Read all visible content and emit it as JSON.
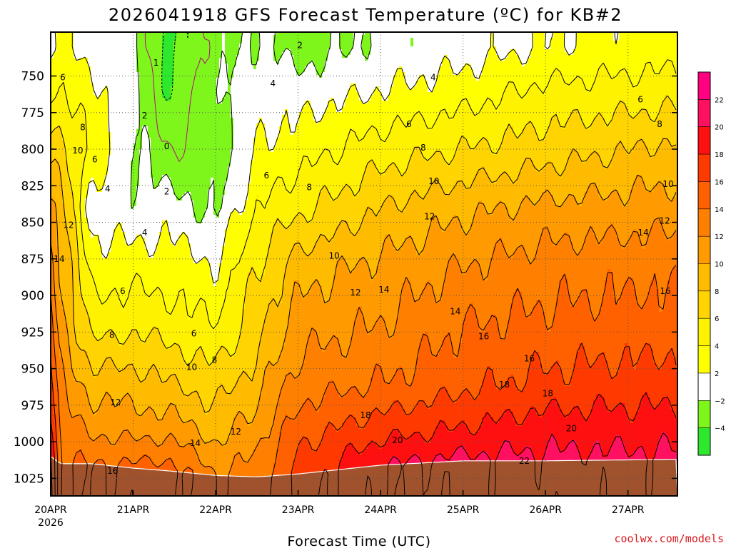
{
  "chart_data": {
    "type": "heatmap",
    "title": "2026041918 GFS Forecast Temperature (ºC) for KB#2",
    "xlabel": "Forecast Time (UTC)",
    "ylabel": "",
    "credit": "coolwx.com/models",
    "y_axis": {
      "reversed": true,
      "range": [
        1037,
        720
      ],
      "ticks": [
        "750",
        "775",
        "800",
        "825",
        "850",
        "875",
        "900",
        "925",
        "950",
        "975",
        "1000",
        "1025"
      ]
    },
    "x_axis": {
      "range": [
        0,
        7.6
      ],
      "ticks": [
        {
          "label": "20APR",
          "sub": "2026",
          "day": 0
        },
        {
          "label": "21APR",
          "sub": "",
          "day": 1
        },
        {
          "label": "22APR",
          "sub": "",
          "day": 2
        },
        {
          "label": "23APR",
          "sub": "",
          "day": 3
        },
        {
          "label": "24APR",
          "sub": "",
          "day": 4
        },
        {
          "label": "25APR",
          "sub": "",
          "day": 5
        },
        {
          "label": "26APR",
          "sub": "",
          "day": 6
        },
        {
          "label": "27APR",
          "sub": "",
          "day": 7
        }
      ]
    },
    "grid": true,
    "colorbar": {
      "levels": [
        -6,
        -4,
        -2,
        2,
        4,
        6,
        8,
        10,
        12,
        14,
        16,
        18,
        20,
        22,
        24
      ],
      "tick_labels": [
        "−4",
        "−2",
        "2",
        "4",
        "6",
        "8",
        "10",
        "12",
        "14",
        "16",
        "18",
        "20",
        "22"
      ],
      "colors": [
        "#00e676",
        "#2ee82e",
        "#7ef51b",
        "#ffffff",
        "#ffff00",
        "#fff200",
        "#ffd400",
        "#ffbb00",
        "#ff9a00",
        "#ff8000",
        "#ff6000",
        "#ff3a00",
        "#ff1010",
        "#ff1060",
        "#ff0080"
      ]
    },
    "ground_color": "#a0522d",
    "profiles": [
      {
        "day": 0.0,
        "surface_p": 1010,
        "levels": [
          [
            730,
            4
          ],
          [
            760,
            6
          ],
          [
            800,
            9
          ],
          [
            840,
            12
          ],
          [
            880,
            15
          ],
          [
            920,
            17
          ],
          [
            960,
            19
          ],
          [
            990,
            21
          ],
          [
            1010,
            22.5
          ]
        ]
      },
      {
        "day": 0.12,
        "surface_p": 1015,
        "levels": [
          [
            730,
            4.5
          ],
          [
            760,
            6
          ],
          [
            800,
            9
          ],
          [
            840,
            11
          ],
          [
            880,
            12
          ],
          [
            920,
            13
          ],
          [
            960,
            14
          ],
          [
            990,
            15
          ],
          [
            1015,
            16
          ]
        ]
      },
      {
        "day": 0.5,
        "surface_p": 1015,
        "levels": [
          [
            730,
            3
          ],
          [
            760,
            4.5
          ],
          [
            800,
            5.5
          ],
          [
            840,
            3
          ],
          [
            880,
            5
          ],
          [
            920,
            7
          ],
          [
            960,
            11
          ],
          [
            990,
            13.5
          ],
          [
            1015,
            16
          ]
        ]
      },
      {
        "day": 1.0,
        "surface_p": 1018,
        "levels": [
          [
            730,
            2.5
          ],
          [
            760,
            3
          ],
          [
            800,
            2.5
          ],
          [
            840,
            2.5
          ],
          [
            880,
            5
          ],
          [
            920,
            7.5
          ],
          [
            960,
            11
          ],
          [
            990,
            13
          ],
          [
            1018,
            16.5
          ]
        ]
      },
      {
        "day": 1.45,
        "surface_p": 1020,
        "levels": [
          [
            730,
            -3
          ],
          [
            760,
            -2.5
          ],
          [
            800,
            0
          ],
          [
            840,
            3
          ],
          [
            880,
            5
          ],
          [
            920,
            7
          ],
          [
            960,
            10
          ],
          [
            990,
            13
          ],
          [
            1020,
            17
          ]
        ]
      },
      {
        "day": 2.0,
        "surface_p": 1023,
        "levels": [
          [
            730,
            1
          ],
          [
            760,
            2
          ],
          [
            800,
            1
          ],
          [
            840,
            1.5
          ],
          [
            880,
            4
          ],
          [
            920,
            6
          ],
          [
            960,
            9
          ],
          [
            990,
            11
          ],
          [
            1023,
            14
          ]
        ]
      },
      {
        "day": 2.5,
        "surface_p": 1024,
        "levels": [
          [
            730,
            2.5
          ],
          [
            760,
            3
          ],
          [
            800,
            4
          ],
          [
            840,
            6
          ],
          [
            880,
            8
          ],
          [
            920,
            9
          ],
          [
            960,
            11
          ],
          [
            990,
            13
          ],
          [
            1024,
            15
          ]
        ]
      },
      {
        "day": 3.0,
        "surface_p": 1022,
        "levels": [
          [
            730,
            1
          ],
          [
            760,
            3
          ],
          [
            800,
            5
          ],
          [
            840,
            7.5
          ],
          [
            880,
            11
          ],
          [
            920,
            13
          ],
          [
            960,
            15
          ],
          [
            990,
            17
          ],
          [
            1022,
            19
          ]
        ]
      },
      {
        "day": 4.0,
        "surface_p": 1016,
        "levels": [
          [
            730,
            2.5
          ],
          [
            760,
            4
          ],
          [
            800,
            7
          ],
          [
            840,
            10
          ],
          [
            880,
            12.5
          ],
          [
            920,
            14
          ],
          [
            960,
            16
          ],
          [
            990,
            19
          ],
          [
            1016,
            22
          ]
        ]
      },
      {
        "day": 5.0,
        "surface_p": 1013,
        "levels": [
          [
            730,
            3
          ],
          [
            760,
            5
          ],
          [
            800,
            8
          ],
          [
            840,
            11.5
          ],
          [
            880,
            14
          ],
          [
            920,
            16
          ],
          [
            960,
            17.5
          ],
          [
            990,
            20
          ],
          [
            1013,
            22.5
          ]
        ]
      },
      {
        "day": 6.0,
        "surface_p": 1013,
        "levels": [
          [
            730,
            4
          ],
          [
            760,
            6.5
          ],
          [
            800,
            9
          ],
          [
            840,
            12.5
          ],
          [
            880,
            15
          ],
          [
            920,
            16.5
          ],
          [
            960,
            18.5
          ],
          [
            990,
            21
          ],
          [
            1013,
            22.5
          ]
        ]
      },
      {
        "day": 7.6,
        "surface_p": 1012,
        "levels": [
          [
            730,
            5
          ],
          [
            760,
            7
          ],
          [
            800,
            10.5
          ],
          [
            840,
            13
          ],
          [
            880,
            15.5
          ],
          [
            920,
            17
          ],
          [
            960,
            19
          ],
          [
            990,
            21
          ],
          [
            1012,
            22.5
          ]
        ]
      }
    ],
    "contour_labels": [
      {
        "day": 0.17,
        "p": 751,
        "value": "6"
      },
      {
        "day": 0.45,
        "p": 785,
        "value": "8"
      },
      {
        "day": 0.38,
        "p": 801,
        "value": "10"
      },
      {
        "day": 0.62,
        "p": 807,
        "value": "6"
      },
      {
        "day": 0.8,
        "p": 827,
        "value": "4"
      },
      {
        "day": 0.25,
        "p": 852,
        "value": "12"
      },
      {
        "day": 0.12,
        "p": 875,
        "value": "14"
      },
      {
        "day": 1.32,
        "p": 777,
        "value": "2"
      },
      {
        "day": 1.63,
        "p": 798,
        "value": "0"
      },
      {
        "day": 1.63,
        "p": 829,
        "value": "2"
      },
      {
        "day": 1.48,
        "p": 741,
        "value": "1"
      },
      {
        "day": 1.32,
        "p": 857,
        "value": "4"
      },
      {
        "day": 1.01,
        "p": 897,
        "value": "6"
      },
      {
        "day": 0.86,
        "p": 927,
        "value": "8"
      },
      {
        "day": 2.01,
        "p": 926,
        "value": "6"
      },
      {
        "day": 2.3,
        "p": 944,
        "value": "8"
      },
      {
        "day": 1.98,
        "p": 949,
        "value": "10"
      },
      {
        "day": 0.91,
        "p": 973,
        "value": "12"
      },
      {
        "day": 2.6,
        "p": 993,
        "value": "12"
      },
      {
        "day": 2.03,
        "p": 1001,
        "value": "14"
      },
      {
        "day": 0.87,
        "p": 1020,
        "value": "16"
      },
      {
        "day": 3.5,
        "p": 729,
        "value": "2"
      },
      {
        "day": 3.12,
        "p": 755,
        "value": "4"
      },
      {
        "day": 3.03,
        "p": 818,
        "value": "6"
      },
      {
        "day": 3.63,
        "p": 826,
        "value": "8"
      },
      {
        "day": 3.98,
        "p": 873,
        "value": "10"
      },
      {
        "day": 4.28,
        "p": 898,
        "value": "12"
      },
      {
        "day": 4.68,
        "p": 896,
        "value": "14"
      },
      {
        "day": 5.37,
        "p": 751,
        "value": "4"
      },
      {
        "day": 5.03,
        "p": 783,
        "value": "6"
      },
      {
        "day": 5.23,
        "p": 799,
        "value": "8"
      },
      {
        "day": 5.38,
        "p": 822,
        "value": "10"
      },
      {
        "day": 5.32,
        "p": 846,
        "value": "12"
      },
      {
        "day": 5.68,
        "p": 911,
        "value": "14"
      },
      {
        "day": 6.08,
        "p": 928,
        "value": "16"
      },
      {
        "day": 6.72,
        "p": 943,
        "value": "16"
      },
      {
        "day": 4.42,
        "p": 982,
        "value": "18"
      },
      {
        "day": 4.87,
        "p": 999,
        "value": "20"
      },
      {
        "day": 6.37,
        "p": 961,
        "value": "18"
      },
      {
        "day": 6.98,
        "p": 967,
        "value": "18"
      },
      {
        "day": 7.31,
        "p": 991,
        "value": "20"
      },
      {
        "day": 6.65,
        "p": 1013,
        "value": "22"
      },
      {
        "day": 8.28,
        "p": 766,
        "value": "6"
      },
      {
        "day": 8.55,
        "p": 783,
        "value": "8"
      },
      {
        "day": 8.67,
        "p": 824,
        "value": "10"
      },
      {
        "day": 8.62,
        "p": 849,
        "value": "12"
      },
      {
        "day": 8.32,
        "p": 857,
        "value": "14"
      },
      {
        "day": 8.63,
        "p": 897,
        "value": "16"
      }
    ]
  }
}
